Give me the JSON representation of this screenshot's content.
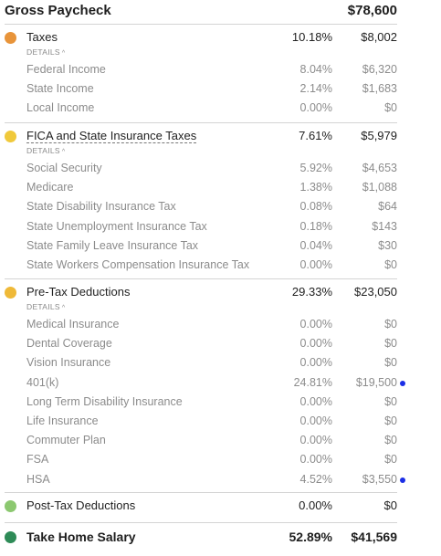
{
  "header": {
    "title": "Gross Paycheck",
    "amount": "$78,600"
  },
  "details_label": "DETAILS",
  "details_caret": "^",
  "colors": {
    "taxes": "#e8943a",
    "fica": "#f0c93b",
    "pretax": "#efb938",
    "posttax": "#8cc870",
    "takehome": "#2e8b57",
    "marker": "#1b2ee6"
  },
  "sections": {
    "taxes": {
      "label": "Taxes",
      "pct": "10.18%",
      "amount": "$8,002",
      "rows": [
        {
          "label": "Federal Income",
          "pct": "8.04%",
          "amount": "$6,320"
        },
        {
          "label": "State Income",
          "pct": "2.14%",
          "amount": "$1,683"
        },
        {
          "label": "Local Income",
          "pct": "0.00%",
          "amount": "$0"
        }
      ]
    },
    "fica": {
      "label": "FICA and State Insurance Taxes",
      "pct": "7.61%",
      "amount": "$5,979",
      "rows": [
        {
          "label": "Social Security",
          "pct": "5.92%",
          "amount": "$4,653"
        },
        {
          "label": "Medicare",
          "pct": "1.38%",
          "amount": "$1,088"
        },
        {
          "label": "State Disability Insurance Tax",
          "pct": "0.08%",
          "amount": "$64"
        },
        {
          "label": "State Unemployment Insurance Tax",
          "pct": "0.18%",
          "amount": "$143"
        },
        {
          "label": "State Family Leave Insurance Tax",
          "pct": "0.04%",
          "amount": "$30"
        },
        {
          "label": "State Workers Compensation Insurance Tax",
          "pct": "0.00%",
          "amount": "$0"
        }
      ]
    },
    "pretax": {
      "label": "Pre-Tax Deductions",
      "pct": "29.33%",
      "amount": "$23,050",
      "rows": [
        {
          "label": "Medical Insurance",
          "pct": "0.00%",
          "amount": "$0"
        },
        {
          "label": "Dental Coverage",
          "pct": "0.00%",
          "amount": "$0"
        },
        {
          "label": "Vision Insurance",
          "pct": "0.00%",
          "amount": "$0"
        },
        {
          "label": "401(k)",
          "pct": "24.81%",
          "amount": "$19,500"
        },
        {
          "label": "Long Term Disability Insurance",
          "pct": "0.00%",
          "amount": "$0"
        },
        {
          "label": "Life Insurance",
          "pct": "0.00%",
          "amount": "$0"
        },
        {
          "label": "Commuter Plan",
          "pct": "0.00%",
          "amount": "$0"
        },
        {
          "label": "FSA",
          "pct": "0.00%",
          "amount": "$0"
        },
        {
          "label": "HSA",
          "pct": "4.52%",
          "amount": "$3,550"
        }
      ]
    },
    "posttax": {
      "label": "Post-Tax Deductions",
      "pct": "0.00%",
      "amount": "$0"
    },
    "takehome": {
      "label": "Take Home Salary",
      "pct": "52.89%",
      "amount": "$41,569"
    }
  }
}
